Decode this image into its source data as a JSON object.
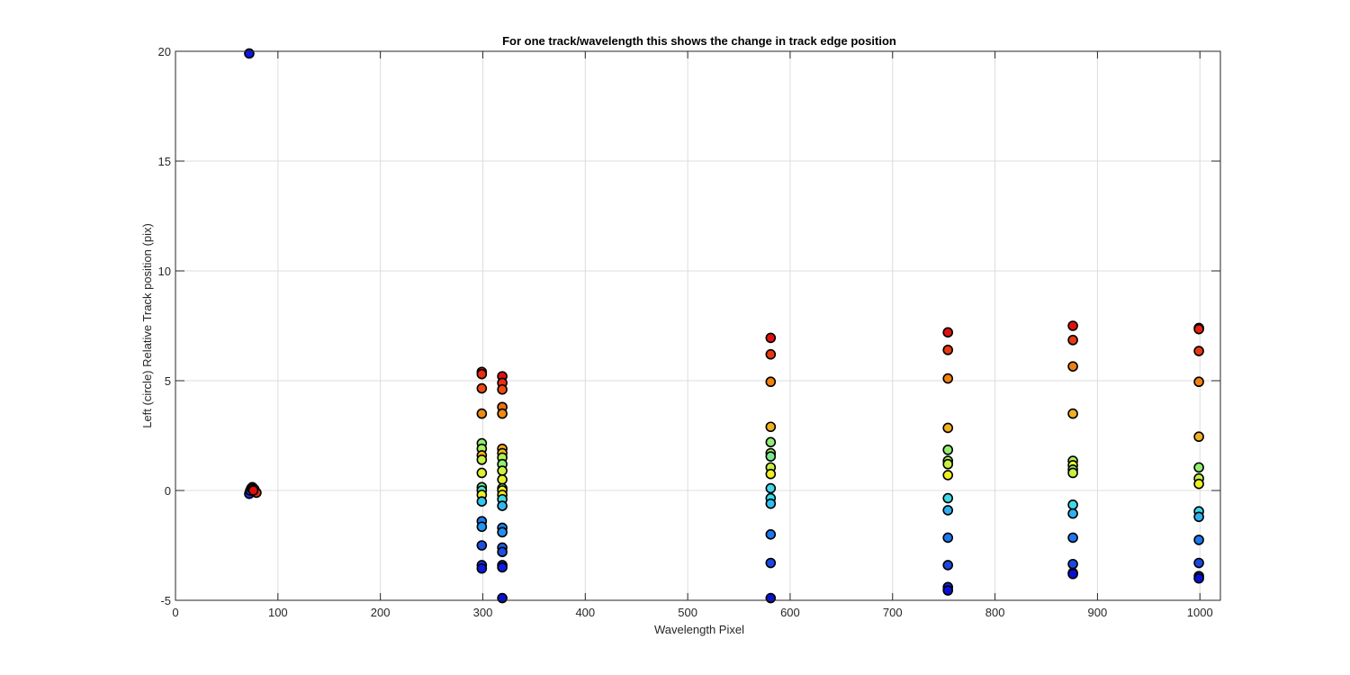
{
  "chart_data": {
    "type": "scatter",
    "title": "For one track/wavelength this shows the change in track edge position",
    "xlabel": "Wavelength Pixel",
    "ylabel": "Left (circle) Relative Track position (pix)",
    "xlim": [
      0,
      1020
    ],
    "ylim": [
      -5,
      20
    ],
    "xticks": [
      0,
      100,
      200,
      300,
      400,
      500,
      600,
      700,
      800,
      900,
      1000
    ],
    "yticks": [
      -5,
      0,
      5,
      10,
      15,
      20
    ],
    "grid": true,
    "marker": "circle",
    "points": [
      {
        "x": 72,
        "y": 19.9,
        "color": "#0b17e6"
      },
      {
        "x": 72,
        "y": -0.15,
        "color": "#1a2ae0"
      },
      {
        "x": 73,
        "y": 0.0,
        "color": "#2050e0"
      },
      {
        "x": 74,
        "y": 0.1,
        "color": "#1e90f0"
      },
      {
        "x": 75,
        "y": 0.15,
        "color": "#4cd8e8"
      },
      {
        "x": 76,
        "y": 0.1,
        "color": "#90ee70"
      },
      {
        "x": 77,
        "y": 0.05,
        "color": "#f0e020"
      },
      {
        "x": 78,
        "y": -0.05,
        "color": "#f09020"
      },
      {
        "x": 79,
        "y": -0.1,
        "color": "#e83010"
      },
      {
        "x": 76,
        "y": 0.0,
        "color": "#e01010"
      },
      {
        "x": 299,
        "y": 5.4,
        "color": "#e01010"
      },
      {
        "x": 299,
        "y": 5.3,
        "color": "#e83010"
      },
      {
        "x": 299,
        "y": 4.65,
        "color": "#f04a10"
      },
      {
        "x": 299,
        "y": 3.5,
        "color": "#f08a10"
      },
      {
        "x": 299,
        "y": 2.15,
        "color": "#90ee70"
      },
      {
        "x": 299,
        "y": 1.9,
        "color": "#a8f060"
      },
      {
        "x": 299,
        "y": 1.6,
        "color": "#f0b020"
      },
      {
        "x": 299,
        "y": 1.4,
        "color": "#c8f040"
      },
      {
        "x": 299,
        "y": 0.8,
        "color": "#e0f030"
      },
      {
        "x": 299,
        "y": 0.15,
        "color": "#78e890"
      },
      {
        "x": 299,
        "y": 0.0,
        "color": "#50e0c8"
      },
      {
        "x": 299,
        "y": -0.2,
        "color": "#f0f020"
      },
      {
        "x": 299,
        "y": -0.5,
        "color": "#30c8f0"
      },
      {
        "x": 299,
        "y": -1.4,
        "color": "#1a80f0"
      },
      {
        "x": 299,
        "y": -1.65,
        "color": "#2098f0"
      },
      {
        "x": 299,
        "y": -2.5,
        "color": "#1a50e0"
      },
      {
        "x": 299,
        "y": -3.4,
        "color": "#1430e0"
      },
      {
        "x": 299,
        "y": -3.55,
        "color": "#0c18e0"
      },
      {
        "x": 319,
        "y": 5.2,
        "color": "#e01010"
      },
      {
        "x": 319,
        "y": 4.9,
        "color": "#e83010"
      },
      {
        "x": 319,
        "y": 4.6,
        "color": "#f04a10"
      },
      {
        "x": 319,
        "y": 3.8,
        "color": "#f07010"
      },
      {
        "x": 319,
        "y": 3.5,
        "color": "#f08a10"
      },
      {
        "x": 319,
        "y": 1.9,
        "color": "#f0a820"
      },
      {
        "x": 319,
        "y": 1.7,
        "color": "#f0c020"
      },
      {
        "x": 319,
        "y": 1.5,
        "color": "#b0f050"
      },
      {
        "x": 319,
        "y": 1.2,
        "color": "#90ee70"
      },
      {
        "x": 319,
        "y": 0.9,
        "color": "#c8f040"
      },
      {
        "x": 319,
        "y": 0.5,
        "color": "#e0f030"
      },
      {
        "x": 319,
        "y": 0.1,
        "color": "#70e8a0"
      },
      {
        "x": 319,
        "y": 0.0,
        "color": "#f8f020"
      },
      {
        "x": 319,
        "y": -0.2,
        "color": "#f0e020"
      },
      {
        "x": 319,
        "y": -0.4,
        "color": "#40d8e0"
      },
      {
        "x": 319,
        "y": -0.7,
        "color": "#30b8f0"
      },
      {
        "x": 319,
        "y": -1.7,
        "color": "#1a80f0"
      },
      {
        "x": 319,
        "y": -1.9,
        "color": "#2090f0"
      },
      {
        "x": 319,
        "y": -2.6,
        "color": "#1a60e8"
      },
      {
        "x": 319,
        "y": -2.8,
        "color": "#1a50e0"
      },
      {
        "x": 319,
        "y": -3.4,
        "color": "#1430e0"
      },
      {
        "x": 319,
        "y": -3.5,
        "color": "#0c20e0"
      },
      {
        "x": 319,
        "y": -4.9,
        "color": "#0810d8"
      },
      {
        "x": 581,
        "y": 6.95,
        "color": "#e01010"
      },
      {
        "x": 581,
        "y": 6.2,
        "color": "#e83a10"
      },
      {
        "x": 581,
        "y": 4.95,
        "color": "#f08010"
      },
      {
        "x": 581,
        "y": 2.9,
        "color": "#f0b020"
      },
      {
        "x": 581,
        "y": 2.2,
        "color": "#90ee70"
      },
      {
        "x": 581,
        "y": 1.7,
        "color": "#a8f060"
      },
      {
        "x": 581,
        "y": 1.55,
        "color": "#78e890"
      },
      {
        "x": 581,
        "y": 1.05,
        "color": "#c8f040"
      },
      {
        "x": 581,
        "y": 0.75,
        "color": "#f0f020"
      },
      {
        "x": 581,
        "y": 0.1,
        "color": "#40d8e8"
      },
      {
        "x": 581,
        "y": -0.35,
        "color": "#30e0f0"
      },
      {
        "x": 581,
        "y": -0.6,
        "color": "#30c0f0"
      },
      {
        "x": 581,
        "y": -2.0,
        "color": "#1a78f0"
      },
      {
        "x": 581,
        "y": -3.3,
        "color": "#1a48e0"
      },
      {
        "x": 581,
        "y": -4.9,
        "color": "#0810d8"
      },
      {
        "x": 754,
        "y": 7.2,
        "color": "#e01010"
      },
      {
        "x": 754,
        "y": 6.4,
        "color": "#e83a10"
      },
      {
        "x": 754,
        "y": 5.1,
        "color": "#f08010"
      },
      {
        "x": 754,
        "y": 2.85,
        "color": "#f0b020"
      },
      {
        "x": 754,
        "y": 1.85,
        "color": "#90ee70"
      },
      {
        "x": 754,
        "y": 1.35,
        "color": "#a8f060"
      },
      {
        "x": 754,
        "y": 1.2,
        "color": "#c8f040"
      },
      {
        "x": 754,
        "y": 0.7,
        "color": "#f0f020"
      },
      {
        "x": 754,
        "y": -0.35,
        "color": "#40d8e8"
      },
      {
        "x": 754,
        "y": -0.9,
        "color": "#30b0f0"
      },
      {
        "x": 754,
        "y": -2.15,
        "color": "#1a78f0"
      },
      {
        "x": 754,
        "y": -3.4,
        "color": "#1a48e0"
      },
      {
        "x": 754,
        "y": -4.4,
        "color": "#1428e0"
      },
      {
        "x": 754,
        "y": -4.55,
        "color": "#0810d8"
      },
      {
        "x": 876,
        "y": 7.5,
        "color": "#e01010"
      },
      {
        "x": 876,
        "y": 6.85,
        "color": "#e83a10"
      },
      {
        "x": 876,
        "y": 5.65,
        "color": "#f08010"
      },
      {
        "x": 876,
        "y": 3.5,
        "color": "#f0b020"
      },
      {
        "x": 876,
        "y": 1.35,
        "color": "#a8f060"
      },
      {
        "x": 876,
        "y": 1.15,
        "color": "#f0f020"
      },
      {
        "x": 876,
        "y": 0.95,
        "color": "#90ee70"
      },
      {
        "x": 876,
        "y": 0.8,
        "color": "#c8f040"
      },
      {
        "x": 876,
        "y": -0.65,
        "color": "#40d8e8"
      },
      {
        "x": 876,
        "y": -1.05,
        "color": "#30b0f0"
      },
      {
        "x": 876,
        "y": -2.15,
        "color": "#1a78f0"
      },
      {
        "x": 876,
        "y": -3.35,
        "color": "#1a48e0"
      },
      {
        "x": 876,
        "y": -3.75,
        "color": "#1428e0"
      },
      {
        "x": 876,
        "y": -3.8,
        "color": "#0810d8"
      },
      {
        "x": 999,
        "y": 7.4,
        "color": "#e01010"
      },
      {
        "x": 999,
        "y": 7.35,
        "color": "#e82010"
      },
      {
        "x": 999,
        "y": 6.35,
        "color": "#e83a10"
      },
      {
        "x": 999,
        "y": 4.95,
        "color": "#f08010"
      },
      {
        "x": 999,
        "y": 2.45,
        "color": "#f0b020"
      },
      {
        "x": 999,
        "y": 1.05,
        "color": "#90ee70"
      },
      {
        "x": 999,
        "y": 0.55,
        "color": "#c8f040"
      },
      {
        "x": 999,
        "y": 0.3,
        "color": "#f0f020"
      },
      {
        "x": 999,
        "y": -0.95,
        "color": "#40d8e8"
      },
      {
        "x": 999,
        "y": -1.2,
        "color": "#30b0f0"
      },
      {
        "x": 999,
        "y": -2.25,
        "color": "#1a78f0"
      },
      {
        "x": 999,
        "y": -3.3,
        "color": "#1a48e0"
      },
      {
        "x": 999,
        "y": -3.9,
        "color": "#1428e0"
      },
      {
        "x": 999,
        "y": -4.0,
        "color": "#0810d8"
      }
    ]
  }
}
